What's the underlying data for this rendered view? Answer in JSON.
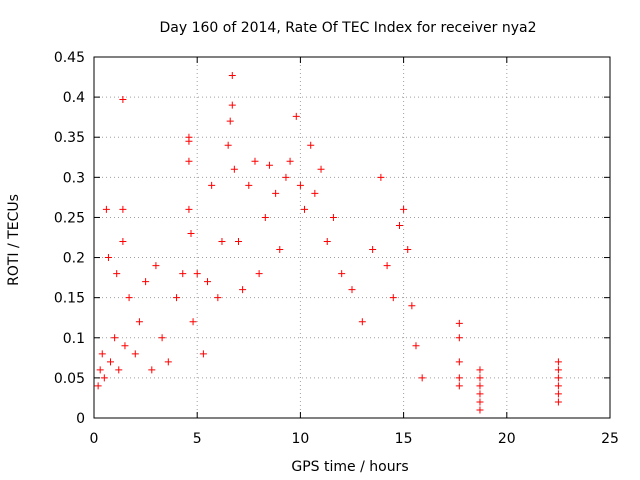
{
  "chart_data": {
    "type": "scatter",
    "title": "Day 160 of 2014, Rate Of TEC Index for receiver nya2",
    "xlabel": "GPS time / hours",
    "ylabel": "ROTI / TECUs",
    "xlim": [
      0,
      25
    ],
    "ylim": [
      0,
      0.45
    ],
    "x_ticks": [
      "0",
      "5",
      "10",
      "15",
      "20",
      "25"
    ],
    "y_ticks": [
      "0",
      "0.05",
      "0.1",
      "0.15",
      "0.2",
      "0.25",
      "0.3",
      "0.35",
      "0.4",
      "0.45"
    ],
    "grid": true,
    "marker": "+",
    "color": "#ff0000",
    "series": [
      {
        "points": [
          [
            0.2,
            0.04
          ],
          [
            0.3,
            0.06
          ],
          [
            0.4,
            0.08
          ],
          [
            0.5,
            0.05
          ],
          [
            0.6,
            0.26
          ],
          [
            0.7,
            0.2
          ],
          [
            0.8,
            0.07
          ],
          [
            1.0,
            0.1
          ],
          [
            1.1,
            0.18
          ],
          [
            1.2,
            0.06
          ],
          [
            1.4,
            0.397
          ],
          [
            1.4,
            0.26
          ],
          [
            1.4,
            0.22
          ],
          [
            1.5,
            0.09
          ],
          [
            1.7,
            0.15
          ],
          [
            2.0,
            0.08
          ],
          [
            2.2,
            0.12
          ],
          [
            2.5,
            0.17
          ],
          [
            2.8,
            0.06
          ],
          [
            3.0,
            0.19
          ],
          [
            3.3,
            0.1
          ],
          [
            3.6,
            0.07
          ],
          [
            4.0,
            0.15
          ],
          [
            4.3,
            0.18
          ],
          [
            4.6,
            0.35
          ],
          [
            4.6,
            0.345
          ],
          [
            4.6,
            0.32
          ],
          [
            4.6,
            0.26
          ],
          [
            4.7,
            0.23
          ],
          [
            4.8,
            0.12
          ],
          [
            5.0,
            0.18
          ],
          [
            5.3,
            0.08
          ],
          [
            5.5,
            0.17
          ],
          [
            5.7,
            0.29
          ],
          [
            6.0,
            0.15
          ],
          [
            6.2,
            0.22
          ],
          [
            6.5,
            0.34
          ],
          [
            6.6,
            0.37
          ],
          [
            6.7,
            0.39
          ],
          [
            6.7,
            0.427
          ],
          [
            6.8,
            0.31
          ],
          [
            7.0,
            0.22
          ],
          [
            7.2,
            0.16
          ],
          [
            7.5,
            0.29
          ],
          [
            7.8,
            0.32
          ],
          [
            8.0,
            0.18
          ],
          [
            8.3,
            0.25
          ],
          [
            8.5,
            0.315
          ],
          [
            8.8,
            0.28
          ],
          [
            9.0,
            0.21
          ],
          [
            9.3,
            0.3
          ],
          [
            9.5,
            0.32
          ],
          [
            9.8,
            0.376
          ],
          [
            10.0,
            0.29
          ],
          [
            10.2,
            0.26
          ],
          [
            10.5,
            0.34
          ],
          [
            10.7,
            0.28
          ],
          [
            11.0,
            0.31
          ],
          [
            11.3,
            0.22
          ],
          [
            11.6,
            0.25
          ],
          [
            12.0,
            0.18
          ],
          [
            12.5,
            0.16
          ],
          [
            13.0,
            0.12
          ],
          [
            13.5,
            0.21
          ],
          [
            13.9,
            0.3
          ],
          [
            14.2,
            0.19
          ],
          [
            14.5,
            0.15
          ],
          [
            14.8,
            0.24
          ],
          [
            15.0,
            0.26
          ],
          [
            15.2,
            0.21
          ],
          [
            15.4,
            0.14
          ],
          [
            15.6,
            0.09
          ],
          [
            15.9,
            0.05
          ],
          [
            17.7,
            0.118
          ],
          [
            17.7,
            0.1
          ],
          [
            17.7,
            0.07
          ],
          [
            17.7,
            0.05
          ],
          [
            17.7,
            0.04
          ],
          [
            18.7,
            0.06
          ],
          [
            18.7,
            0.05
          ],
          [
            18.7,
            0.04
          ],
          [
            18.7,
            0.03
          ],
          [
            18.7,
            0.02
          ],
          [
            18.7,
            0.01
          ],
          [
            22.5,
            0.07
          ],
          [
            22.5,
            0.06
          ],
          [
            22.5,
            0.05
          ],
          [
            22.5,
            0.04
          ],
          [
            22.5,
            0.03
          ],
          [
            22.5,
            0.02
          ]
        ]
      }
    ]
  }
}
